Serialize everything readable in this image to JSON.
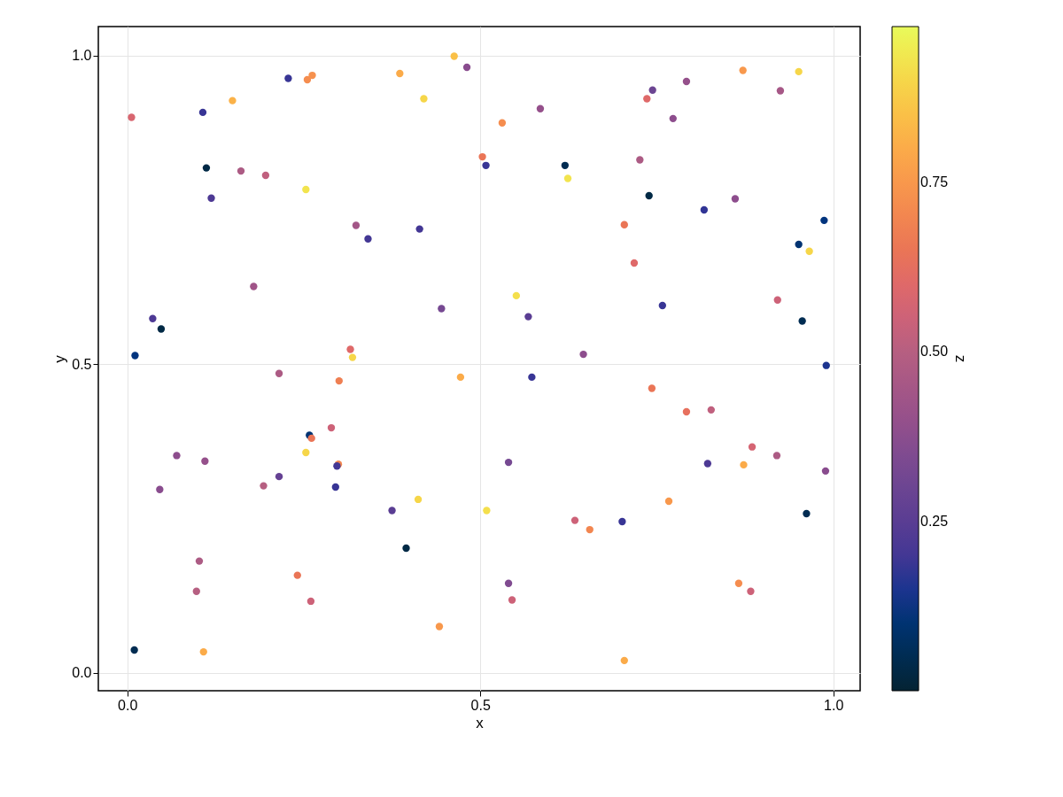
{
  "chart_data": {
    "type": "scatter",
    "xlabel": "x",
    "ylabel": "y",
    "clabel": "z",
    "xlim": [
      -0.041,
      1.038
    ],
    "ylim": [
      -0.029,
      1.047
    ],
    "clim": [
      0.0,
      0.98
    ],
    "xticks": [
      {
        "value": 0,
        "label": "0.0"
      },
      {
        "value": 0.5,
        "label": "0.5"
      },
      {
        "value": 1,
        "label": "1.0"
      }
    ],
    "yticks": [
      {
        "value": 0,
        "label": "0.0"
      },
      {
        "value": 0.5,
        "label": "0.5"
      },
      {
        "value": 1,
        "label": "1.0"
      }
    ],
    "cticks": [
      0.25,
      {
        "value": 0.5,
        "label": "0.50"
      },
      0.75
    ],
    "grid": true,
    "marker": "circle",
    "x": [
      0.006,
      0.107,
      0.112,
      0.119,
      0.149,
      0.161,
      0.196,
      0.179,
      0.228,
      0.255,
      0.262,
      0.253,
      0.324,
      0.341,
      0.386,
      0.42,
      0.414,
      0.463,
      0.481,
      0.503,
      0.508,
      0.531,
      0.585,
      0.62,
      0.624,
      0.736,
      0.744,
      0.726,
      0.739,
      0.773,
      0.792,
      0.872,
      0.925,
      0.951,
      0.817,
      0.861,
      0.704,
      0.718,
      0.951,
      0.987,
      0.966,
      0.921,
      0.956,
      0.758,
      0.551,
      0.568,
      0.445,
      0.646,
      0.573,
      0.472,
      0.316,
      0.319,
      0.3,
      0.215,
      0.036,
      0.048,
      0.011,
      0.99,
      0.743,
      0.792,
      0.827,
      0.885,
      0.873,
      0.92,
      0.989,
      0.822,
      0.767,
      0.962,
      0.701,
      0.634,
      0.655,
      0.54,
      0.509,
      0.412,
      0.375,
      0.395,
      0.289,
      0.258,
      0.261,
      0.253,
      0.299,
      0.297,
      0.295,
      0.215,
      0.193,
      0.11,
      0.07,
      0.046,
      0.102,
      0.098,
      0.241,
      0.26,
      0.01,
      0.108,
      0.442,
      0.54,
      0.545,
      0.704,
      0.866,
      0.883
    ],
    "values": [
      0.9,
      0.908,
      0.818,
      0.769,
      0.927,
      0.813,
      0.806,
      0.626,
      0.963,
      0.961,
      0.968,
      0.783,
      0.725,
      0.703,
      0.971,
      0.93,
      0.719,
      0.999,
      0.981,
      0.836,
      0.822,
      0.891,
      0.914,
      0.822,
      0.801,
      0.93,
      0.944,
      0.831,
      0.773,
      0.898,
      0.958,
      0.976,
      0.943,
      0.974,
      0.75,
      0.768,
      0.726,
      0.664,
      0.694,
      0.733,
      0.683,
      0.604,
      0.57,
      0.595,
      0.611,
      0.577,
      0.59,
      0.516,
      0.479,
      0.479,
      0.524,
      0.511,
      0.473,
      0.485,
      0.574,
      0.557,
      0.514,
      0.498,
      0.461,
      0.423,
      0.426,
      0.366,
      0.337,
      0.352,
      0.327,
      0.339,
      0.278,
      0.258,
      0.245,
      0.247,
      0.232,
      0.341,
      0.263,
      0.281,
      0.263,
      0.202,
      0.397,
      0.385,
      0.38,
      0.357,
      0.338,
      0.335,
      0.301,
      0.318,
      0.303,
      0.343,
      0.352,
      0.297,
      0.181,
      0.132,
      0.158,
      0.116,
      0.037,
      0.034,
      0.075,
      0.145,
      0.118,
      0.02,
      0.145,
      0.132
    ],
    "cvalues": [
      0.58,
      0.18,
      0.03,
      0.22,
      0.82,
      0.47,
      0.52,
      0.43,
      0.18,
      0.72,
      0.73,
      0.93,
      0.44,
      0.2,
      0.8,
      0.9,
      0.2,
      0.85,
      0.37,
      0.65,
      0.18,
      0.72,
      0.4,
      0.05,
      0.93,
      0.6,
      0.3,
      0.47,
      0.03,
      0.38,
      0.4,
      0.75,
      0.45,
      0.9,
      0.17,
      0.38,
      0.65,
      0.6,
      0.1,
      0.12,
      0.9,
      0.55,
      0.05,
      0.18,
      0.92,
      0.25,
      0.33,
      0.38,
      0.18,
      0.8,
      0.6,
      0.9,
      0.68,
      0.47,
      0.22,
      0.03,
      0.12,
      0.15,
      0.65,
      0.63,
      0.52,
      0.57,
      0.8,
      0.47,
      0.37,
      0.22,
      0.75,
      0.05,
      0.18,
      0.55,
      0.7,
      0.33,
      0.92,
      0.9,
      0.25,
      0.03,
      0.55,
      0.1,
      0.65,
      0.9,
      0.7,
      0.2,
      0.18,
      0.28,
      0.5,
      0.4,
      0.38,
      0.37,
      0.47,
      0.5,
      0.65,
      0.55,
      0.05,
      0.8,
      0.75,
      0.35,
      0.55,
      0.8,
      0.72,
      0.55
    ]
  }
}
